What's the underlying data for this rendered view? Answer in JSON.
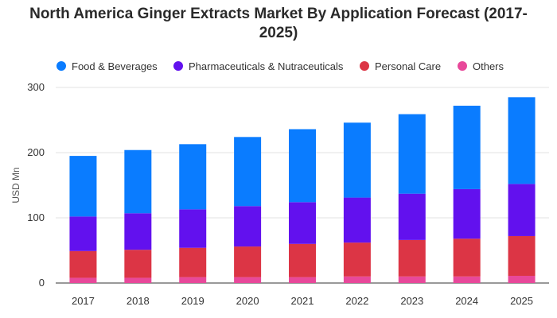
{
  "chart_data": {
    "type": "bar",
    "stacked": true,
    "title_line1": "North America Ginger Extracts Market By Application Forecast (2017-",
    "title_line2": "2025)",
    "ylabel": "USD Mn",
    "xlabel": "",
    "ylim": [
      0,
      300
    ],
    "yticks": [
      "0",
      "100",
      "200",
      "300"
    ],
    "grid": true,
    "legend_position": "top",
    "categories": [
      "2017",
      "2018",
      "2019",
      "2020",
      "2021",
      "2022",
      "2023",
      "2024",
      "2025"
    ],
    "series": [
      {
        "name": "Others",
        "color": "#e8489a",
        "values": [
          8,
          8,
          9,
          9,
          9,
          10,
          10,
          10,
          11
        ]
      },
      {
        "name": "Personal Care",
        "color": "#dc3545",
        "values": [
          41,
          43,
          45,
          47,
          51,
          52,
          56,
          58,
          61
        ]
      },
      {
        "name": "Pharmaceuticals & Nutraceuticals",
        "color": "#6211ee",
        "values": [
          53,
          56,
          59,
          62,
          64,
          69,
          71,
          76,
          80
        ]
      },
      {
        "name": "Food & Beverages",
        "color": "#0a7cff",
        "values": [
          93,
          97,
          100,
          106,
          112,
          115,
          122,
          128,
          133
        ]
      }
    ],
    "legend_order": [
      3,
      2,
      1,
      0
    ]
  }
}
